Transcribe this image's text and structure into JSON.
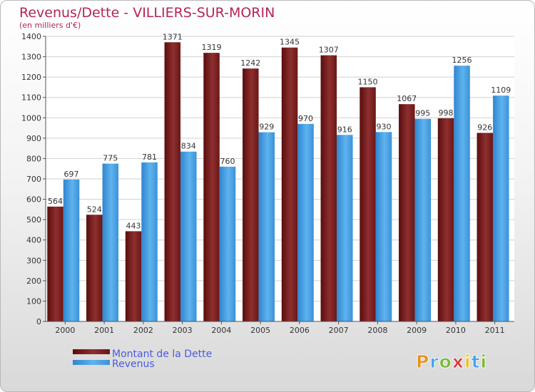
{
  "chart_data": {
    "type": "bar",
    "title": "Revenus/Dette - VILLIERS-SUR-MORIN",
    "subtitle": "(en milliers d'€)",
    "xlabel": "",
    "ylabel": "",
    "ylim": [
      0,
      1400
    ],
    "yticks": [
      0,
      100,
      200,
      300,
      400,
      500,
      600,
      700,
      800,
      900,
      1000,
      1100,
      1200,
      1300,
      1400
    ],
    "grid": true,
    "legend_position": "bottom-left",
    "categories": [
      "2000",
      "2001",
      "2002",
      "2003",
      "2004",
      "2005",
      "2006",
      "2007",
      "2008",
      "2009",
      "2010",
      "2011"
    ],
    "series": [
      {
        "name": "Montant de la Dette",
        "color": "#7a1f1f",
        "values": [
          564,
          524,
          443,
          1371,
          1319,
          1242,
          1345,
          1307,
          1150,
          1067,
          998,
          926
        ]
      },
      {
        "name": "Revenus",
        "color": "#4aa3e6",
        "values": [
          697,
          775,
          781,
          834,
          760,
          929,
          970,
          916,
          930,
          995,
          1256,
          1109
        ]
      }
    ]
  },
  "branding": {
    "logo_text": "Proxiti",
    "title_color": "#b4245a",
    "legend_text_color": "#4b5ae0"
  }
}
